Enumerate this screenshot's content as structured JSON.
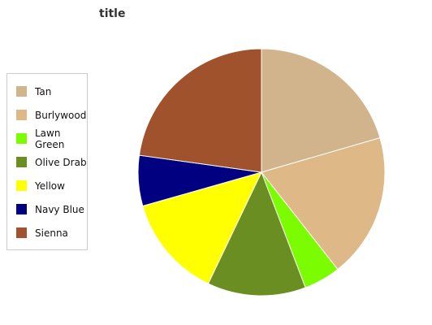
{
  "chart_data": {
    "type": "pie",
    "title": "title",
    "categories": [
      "Tan",
      "Burlywood",
      "Lawn Green",
      "Olive Drab",
      "Yellow",
      "Navy Blue",
      "Sienna"
    ],
    "values": [
      20.5,
      18.9,
      4.8,
      12.9,
      13.5,
      6.6,
      22.8
    ],
    "colors": [
      "#d2b48c",
      "#deb887",
      "#7cfc00",
      "#6b8e23",
      "#ffff00",
      "#000080",
      "#a0522d"
    ],
    "start_angle_deg": 90,
    "direction": "clockwise",
    "legend_position": "left"
  }
}
